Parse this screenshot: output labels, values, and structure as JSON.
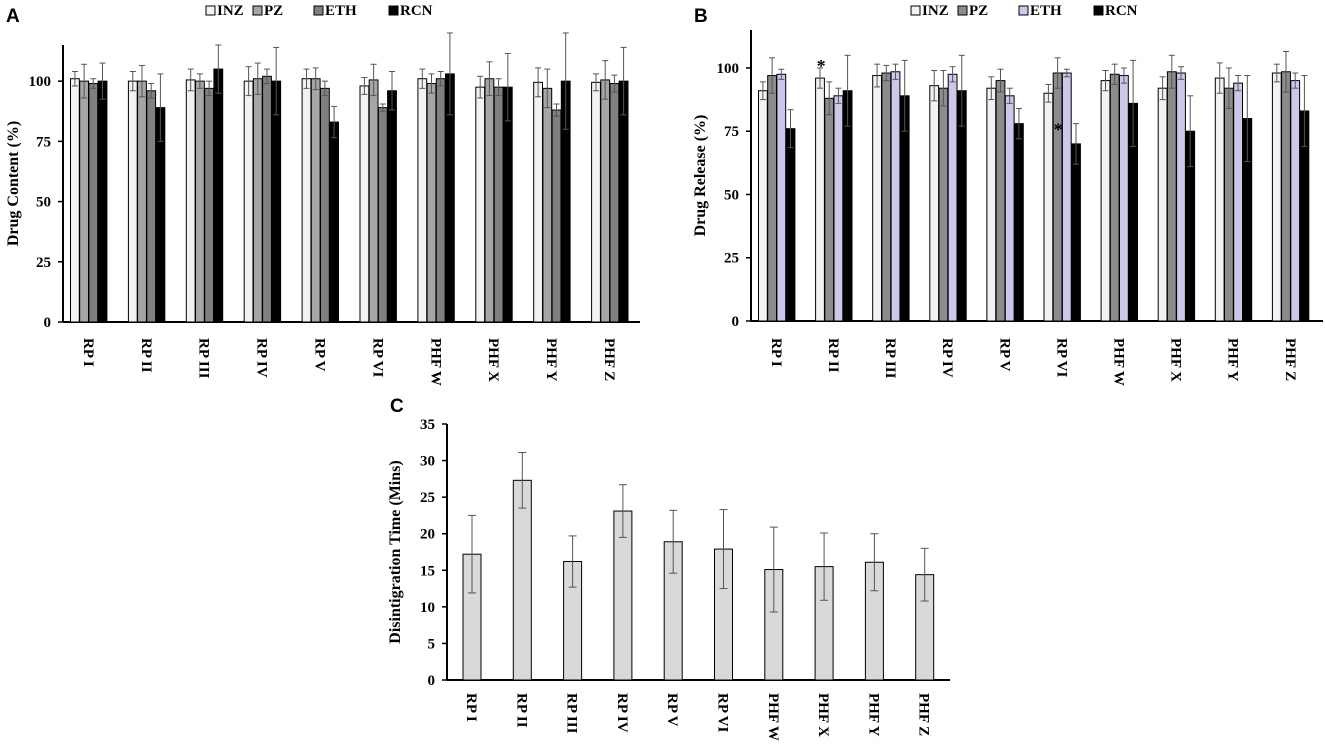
{
  "chart_data": [
    {
      "panel": "A",
      "type": "bar",
      "title": "",
      "xlabel": "",
      "ylabel": "Drug Content (%)",
      "ylim": [
        0,
        115
      ],
      "yticks": [
        0,
        25,
        50,
        75,
        100
      ],
      "grid": false,
      "legend_position": "top",
      "categories": [
        "RP I",
        "RP II",
        "RP III",
        "RP IV",
        "RP V",
        "RP VI",
        "PHF W",
        "PHF X",
        "PHF Y",
        "PHF Z"
      ],
      "series": [
        {
          "name": "INZ",
          "color": "#f2f2f2",
          "values": [
            101,
            100,
            100.5,
            100,
            101,
            98,
            101,
            97.5,
            99.5,
            99.5
          ],
          "errors": [
            3,
            4,
            4.5,
            6,
            4,
            3.5,
            4,
            4.5,
            6,
            3.5
          ]
        },
        {
          "name": "PZ",
          "color": "#a6a6a6",
          "values": [
            100,
            100,
            100,
            101,
            101,
            100.5,
            99,
            101,
            97,
            100.5
          ],
          "errors": [
            7,
            6.5,
            3,
            6.5,
            4.5,
            6.5,
            4,
            7,
            8,
            8
          ]
        },
        {
          "name": "ETH",
          "color": "#808080",
          "values": [
            99,
            96,
            97,
            102,
            97,
            89,
            101,
            97.5,
            88,
            99
          ],
          "errors": [
            2,
            3,
            3,
            3,
            3,
            1.5,
            3,
            3.5,
            2.5,
            3.5
          ]
        },
        {
          "name": "RCN",
          "color": "#000000",
          "values": [
            100,
            89,
            105,
            100,
            83,
            96,
            103,
            97.5,
            100,
            100
          ],
          "errors": [
            7.5,
            14,
            10,
            14,
            6.5,
            8,
            17,
            14,
            20,
            14
          ]
        }
      ],
      "annotations": []
    },
    {
      "panel": "B",
      "type": "bar",
      "title": "",
      "xlabel": "",
      "ylabel": "Drug Release (%)",
      "ylim": [
        0,
        115
      ],
      "yticks": [
        0,
        25,
        50,
        75,
        100
      ],
      "grid": false,
      "legend_position": "top",
      "categories": [
        "RP I",
        "RP II",
        "RP III",
        "RP IV",
        "RP V",
        "RP VI",
        "PHF W",
        "PHF X",
        "PHF Y",
        "PHF Z"
      ],
      "series": [
        {
          "name": "INZ",
          "color": "#f2f2f2",
          "values": [
            91,
            96,
            97,
            93,
            92,
            90,
            95,
            92,
            96,
            98
          ],
          "errors": [
            3.5,
            4,
            4.5,
            6,
            4.5,
            3.5,
            4,
            4.5,
            6,
            3.5
          ]
        },
        {
          "name": "PZ",
          "color": "#8c8c8c",
          "values": [
            97,
            88,
            98,
            92,
            95,
            98,
            97.5,
            98.5,
            92,
            98.5
          ],
          "errors": [
            7,
            6.5,
            3,
            7,
            4.5,
            6,
            4,
            6.5,
            8,
            8
          ]
        },
        {
          "name": "ETH",
          "color": "#cfc6ea",
          "values": [
            97.5,
            89,
            98.5,
            97.5,
            89,
            98,
            97,
            98,
            94,
            95
          ],
          "errors": [
            2,
            3,
            3,
            3,
            3,
            1.5,
            3,
            2.5,
            3,
            3
          ]
        },
        {
          "name": "RCN",
          "color": "#000000",
          "values": [
            76,
            91,
            89,
            91,
            78,
            70,
            86,
            75,
            80,
            83
          ],
          "errors": [
            7.5,
            14,
            14,
            14,
            6,
            8,
            17,
            14,
            17,
            14
          ]
        }
      ],
      "annotations": [
        {
          "text": "*",
          "category": "RP II",
          "series": "INZ"
        },
        {
          "text": "*",
          "category": "RP VI",
          "series": "RCN"
        }
      ]
    },
    {
      "panel": "C",
      "type": "bar",
      "title": "",
      "xlabel": "",
      "ylabel": "Disintigration Time (Mins)",
      "ylim": [
        0,
        35
      ],
      "yticks": [
        0,
        5,
        10,
        15,
        20,
        25,
        30,
        35
      ],
      "grid": false,
      "legend_position": "none",
      "categories": [
        "RP I",
        "RP II",
        "RP III",
        "RP IV",
        "RP V",
        "RP VI",
        "PHF W",
        "PHF X",
        "PHF Y",
        "PHF Z"
      ],
      "series": [
        {
          "name": "Disintegration time",
          "color": "#d9d9d9",
          "values": [
            17.2,
            27.3,
            16.2,
            23.1,
            18.9,
            17.9,
            15.1,
            15.5,
            16.1,
            14.4
          ],
          "errors": [
            5.3,
            3.8,
            3.5,
            3.6,
            4.3,
            5.4,
            5.8,
            4.6,
            3.9,
            3.6
          ]
        }
      ],
      "annotations": []
    }
  ]
}
